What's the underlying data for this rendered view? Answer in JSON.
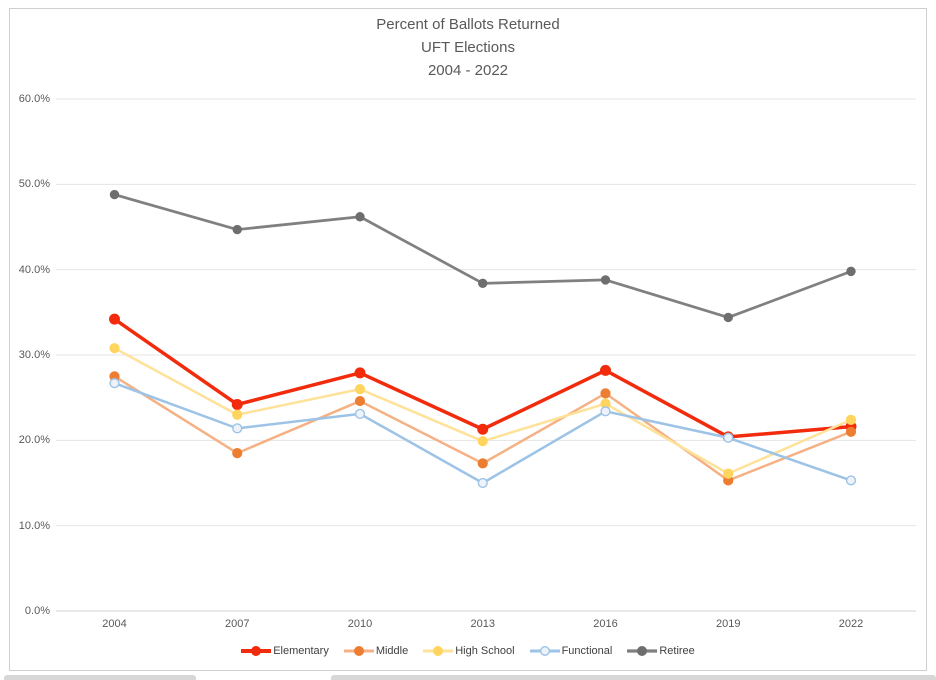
{
  "chart_data": {
    "type": "line",
    "title_lines": [
      "Percent of Ballots Returned",
      "UFT Elections",
      "2004 - 2022"
    ],
    "x_categories": [
      "2004",
      "2007",
      "2010",
      "2013",
      "2016",
      "2019",
      "2022"
    ],
    "y_axis": {
      "min": 0,
      "max": 60,
      "step": 10,
      "tick_values": [
        0,
        10,
        20,
        30,
        40,
        50,
        60
      ],
      "tick_labels": [
        "0.0%",
        "10.0%",
        "20.0%",
        "30.0%",
        "40.0%",
        "50.0%",
        "60.0%"
      ],
      "unit": "%"
    },
    "grid": true,
    "legend_position": "bottom",
    "series": [
      {
        "name": "Elementary",
        "line_color": "#f22b0c",
        "line_width": 3.5,
        "marker_fill": "#f22b0c",
        "marker_stroke": "#f22b0c",
        "marker_radius": 4.8,
        "values": [
          34.2,
          24.2,
          27.9,
          21.3,
          28.2,
          20.4,
          21.6
        ]
      },
      {
        "name": "Middle",
        "line_color": "#f5b183",
        "line_width": 2.5,
        "marker_fill": "#ed7d31",
        "marker_stroke": "#ed7d31",
        "marker_radius": 4.4,
        "values": [
          27.5,
          18.5,
          24.6,
          17.3,
          25.5,
          15.3,
          21.0
        ]
      },
      {
        "name": "High School",
        "line_color": "#ffe299",
        "line_width": 2.5,
        "marker_fill": "#ffd45f",
        "marker_stroke": "#ffd45f",
        "marker_radius": 4.4,
        "values": [
          30.8,
          23.0,
          26.0,
          19.9,
          24.3,
          16.1,
          22.4
        ]
      },
      {
        "name": "Functional",
        "line_color": "#9dc3e6",
        "line_width": 2.5,
        "marker_fill": "#eef3fb",
        "marker_stroke": "#9dc3e6",
        "marker_radius": 4.4,
        "values": [
          26.7,
          21.4,
          23.1,
          15.0,
          23.4,
          20.3,
          15.3
        ]
      },
      {
        "name": "Retiree",
        "line_color": "#808080",
        "line_width": 2.75,
        "marker_fill": "#6e6e6e",
        "marker_stroke": "#6e6e6e",
        "marker_radius": 4.0,
        "values": [
          48.8,
          44.7,
          46.2,
          38.4,
          38.8,
          34.4,
          39.8
        ]
      }
    ],
    "colors": {
      "gridline": "#e4e4e4",
      "axis_line": "#d2d2d2",
      "text": "#595959",
      "legend_text": "#404040",
      "frame_border": "#cfcfcf"
    }
  }
}
